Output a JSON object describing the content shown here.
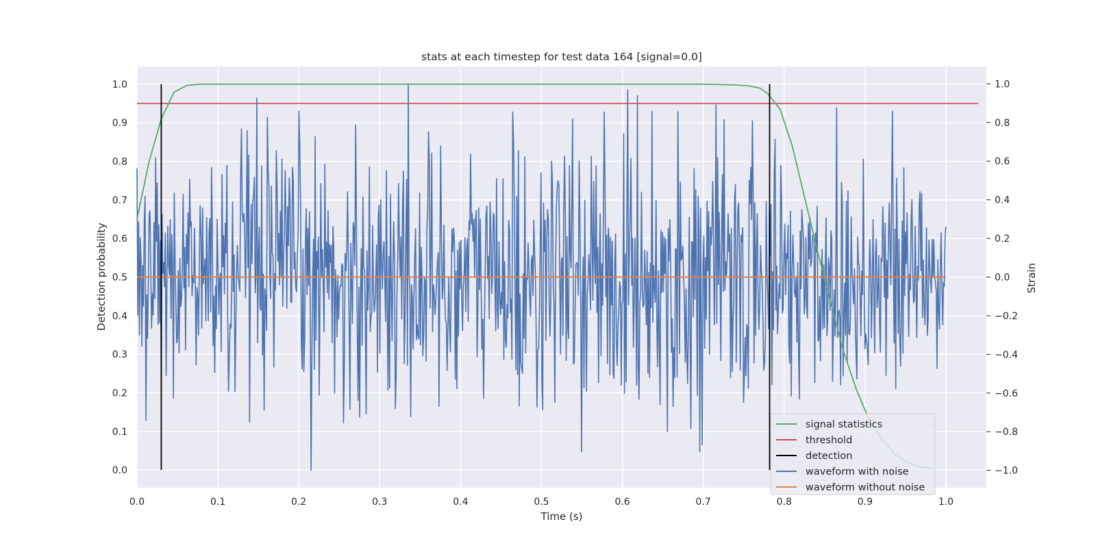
{
  "chart_data": {
    "type": "line",
    "title": "stats at each timestep for test data 164 [signal=0.0]",
    "xlabel": "Time (s)",
    "ylabel": "Detection probability",
    "y2label": "Strain",
    "xlim": [
      0.0,
      1.05
    ],
    "ylim": [
      -0.046,
      1.046
    ],
    "y2lim": [
      -1.09,
      1.09
    ],
    "xticks": [
      "0.0",
      "0.1",
      "0.2",
      "0.3",
      "0.4",
      "0.5",
      "0.6",
      "0.7",
      "0.8",
      "0.9",
      "1.0"
    ],
    "yticks": [
      "0.0",
      "0.1",
      "0.2",
      "0.3",
      "0.4",
      "0.5",
      "0.6",
      "0.7",
      "0.8",
      "0.9",
      "1.0"
    ],
    "y2ticks": [
      "−1.0",
      "−0.8",
      "−0.6",
      "−0.4",
      "−0.2",
      "0.0",
      "0.2",
      "0.4",
      "0.6",
      "0.8",
      "1.0"
    ],
    "grid": true,
    "legend_position": "lower-right",
    "colors": {
      "signal_statistics": "#55a868",
      "threshold": "#c44e52",
      "detection": "#000000",
      "waveform_with_noise": "#4c72b0",
      "waveform_without_noise": "#dd8452"
    },
    "legend": [
      {
        "key": "signal_statistics",
        "label": "signal statistics"
      },
      {
        "key": "threshold",
        "label": "threshold"
      },
      {
        "key": "detection",
        "label": "detection"
      },
      {
        "key": "waveform_with_noise",
        "label": "waveform with noise"
      },
      {
        "key": "waveform_without_noise",
        "label": "waveform without noise"
      }
    ],
    "signal_statistics": {
      "axis": "left",
      "x": [
        0.0,
        0.015,
        0.03,
        0.046,
        0.062,
        0.078,
        0.1,
        0.2,
        0.3,
        0.4,
        0.5,
        0.6,
        0.7,
        0.74,
        0.755,
        0.77,
        0.78,
        0.795,
        0.81,
        0.826,
        0.842,
        0.858,
        0.873,
        0.889,
        0.905,
        0.921,
        0.937,
        0.952,
        0.968,
        0.984
      ],
      "y": [
        0.65,
        0.8,
        0.91,
        0.98,
        0.997,
        1.0,
        1.0,
        1.0,
        1.0,
        1.0,
        1.0,
        1.0,
        1.0,
        0.998,
        0.996,
        0.99,
        0.975,
        0.935,
        0.84,
        0.7,
        0.56,
        0.43,
        0.31,
        0.21,
        0.13,
        0.08,
        0.04,
        0.02,
        0.008,
        0.005
      ]
    },
    "threshold": {
      "axis": "left",
      "y": 0.95,
      "x_range": [
        0.0,
        1.04
      ]
    },
    "detection": {
      "axis": "left",
      "x": [
        0.03,
        0.782
      ],
      "y_range": [
        0.0,
        1.0
      ]
    },
    "waveform_with_noise": {
      "axis": "right",
      "x_range": [
        0.0,
        1.0
      ],
      "n_points": 1000,
      "y_range": [
        -1.0,
        1.0
      ],
      "note_seed": 164
    },
    "waveform_without_noise": {
      "axis": "right",
      "x": [
        0.0,
        1.0
      ],
      "y": [
        0.0,
        0.0
      ]
    }
  }
}
